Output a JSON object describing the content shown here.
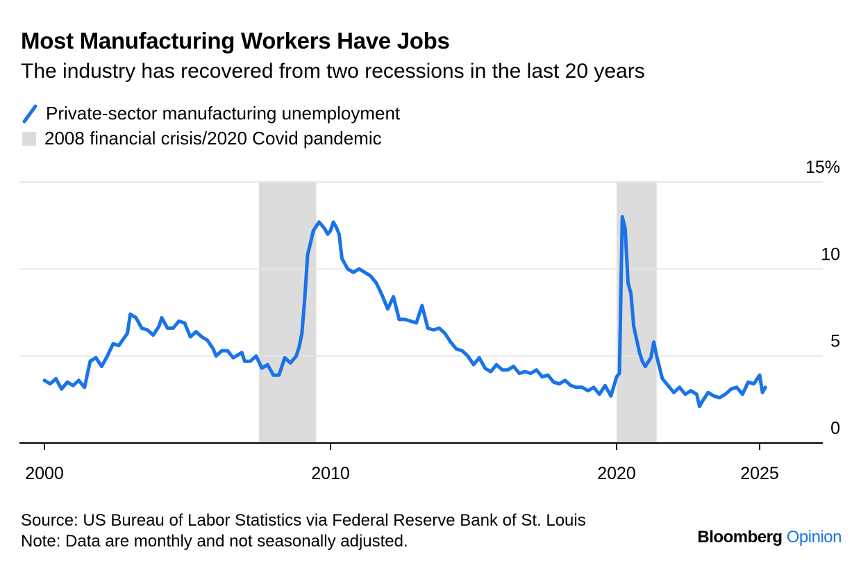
{
  "title": "Most Manufacturing Workers Have Jobs",
  "subtitle": "The industry has recovered from two recessions in the last 20 years",
  "legend": {
    "line_label": "Private-sector manufacturing unemployment",
    "band_label": "2008 financial crisis/2020 Covid pandemic"
  },
  "source": "Source: US Bureau of Labor Statistics via Federal Reserve Bank of St. Louis",
  "note": "Note: Data are monthly and not seasonally adjusted.",
  "brand": {
    "name": "Bloomberg",
    "suffix": "Opinion"
  },
  "colors": {
    "line": "#1a73e8",
    "band": "#dcdcdc",
    "grid": "#e6e6e6",
    "axis": "#000000",
    "brand_accent": "#1a73e8"
  },
  "chart_data": {
    "type": "line",
    "ylim": [
      0,
      15
    ],
    "xlim": [
      1999.6,
      2027.8
    ],
    "y_ticks": [
      {
        "value": 0,
        "label": "0"
      },
      {
        "value": 5,
        "label": "5"
      },
      {
        "value": 10,
        "label": "10"
      },
      {
        "value": 15,
        "label": "15%"
      }
    ],
    "x_ticks": [
      {
        "value": 2000,
        "label": "2000"
      },
      {
        "value": 2010,
        "label": "2010"
      },
      {
        "value": 2020,
        "label": "2020"
      },
      {
        "value": 2025,
        "label": "2025"
      }
    ],
    "grid": true,
    "bands": [
      {
        "start": 2007.5,
        "end": 2009.5
      },
      {
        "start": 2020.0,
        "end": 2021.4
      }
    ],
    "series": [
      {
        "points": [
          [
            2000.0,
            3.6
          ],
          [
            2000.2,
            3.4
          ],
          [
            2000.4,
            3.7
          ],
          [
            2000.6,
            3.1
          ],
          [
            2000.8,
            3.5
          ],
          [
            2001.0,
            3.3
          ],
          [
            2001.2,
            3.6
          ],
          [
            2001.4,
            3.2
          ],
          [
            2001.6,
            4.7
          ],
          [
            2001.8,
            4.9
          ],
          [
            2002.0,
            4.4
          ],
          [
            2002.2,
            5.0
          ],
          [
            2002.4,
            5.7
          ],
          [
            2002.6,
            5.6
          ],
          [
            2002.9,
            6.3
          ],
          [
            2003.0,
            7.4
          ],
          [
            2003.2,
            7.2
          ],
          [
            2003.4,
            6.6
          ],
          [
            2003.6,
            6.5
          ],
          [
            2003.8,
            6.2
          ],
          [
            2004.0,
            6.7
          ],
          [
            2004.1,
            7.2
          ],
          [
            2004.3,
            6.6
          ],
          [
            2004.5,
            6.6
          ],
          [
            2004.7,
            7.0
          ],
          [
            2004.9,
            6.9
          ],
          [
            2005.1,
            6.1
          ],
          [
            2005.3,
            6.4
          ],
          [
            2005.5,
            6.1
          ],
          [
            2005.7,
            5.9
          ],
          [
            2005.9,
            5.4
          ],
          [
            2006.0,
            5.0
          ],
          [
            2006.2,
            5.3
          ],
          [
            2006.4,
            5.3
          ],
          [
            2006.6,
            4.9
          ],
          [
            2006.9,
            5.2
          ],
          [
            2007.0,
            4.7
          ],
          [
            2007.2,
            4.7
          ],
          [
            2007.4,
            5.0
          ],
          [
            2007.6,
            4.3
          ],
          [
            2007.8,
            4.5
          ],
          [
            2008.0,
            3.9
          ],
          [
            2008.2,
            3.9
          ],
          [
            2008.4,
            4.9
          ],
          [
            2008.6,
            4.6
          ],
          [
            2008.8,
            5.0
          ],
          [
            2008.9,
            5.5
          ],
          [
            2009.0,
            6.3
          ],
          [
            2009.1,
            8.3
          ],
          [
            2009.2,
            10.8
          ],
          [
            2009.4,
            12.2
          ],
          [
            2009.6,
            12.7
          ],
          [
            2009.8,
            12.3
          ],
          [
            2009.9,
            12.0
          ],
          [
            2010.0,
            12.2
          ],
          [
            2010.1,
            12.7
          ],
          [
            2010.2,
            12.4
          ],
          [
            2010.3,
            12.0
          ],
          [
            2010.4,
            10.6
          ],
          [
            2010.6,
            10.0
          ],
          [
            2010.8,
            9.8
          ],
          [
            2011.0,
            10.0
          ],
          [
            2011.2,
            9.8
          ],
          [
            2011.4,
            9.6
          ],
          [
            2011.6,
            9.2
          ],
          [
            2011.8,
            8.5
          ],
          [
            2012.0,
            7.7
          ],
          [
            2012.2,
            8.4
          ],
          [
            2012.4,
            7.1
          ],
          [
            2012.6,
            7.1
          ],
          [
            2012.8,
            7.0
          ],
          [
            2013.0,
            6.9
          ],
          [
            2013.2,
            7.9
          ],
          [
            2013.4,
            6.6
          ],
          [
            2013.6,
            6.5
          ],
          [
            2013.8,
            6.6
          ],
          [
            2014.0,
            6.3
          ],
          [
            2014.2,
            5.8
          ],
          [
            2014.4,
            5.4
          ],
          [
            2014.6,
            5.3
          ],
          [
            2014.8,
            5.0
          ],
          [
            2015.0,
            4.5
          ],
          [
            2015.2,
            4.9
          ],
          [
            2015.4,
            4.3
          ],
          [
            2015.6,
            4.1
          ],
          [
            2015.8,
            4.5
          ],
          [
            2016.0,
            4.2
          ],
          [
            2016.2,
            4.2
          ],
          [
            2016.4,
            4.4
          ],
          [
            2016.6,
            4.0
          ],
          [
            2016.8,
            4.1
          ],
          [
            2017.0,
            4.0
          ],
          [
            2017.2,
            4.2
          ],
          [
            2017.4,
            3.8
          ],
          [
            2017.6,
            3.9
          ],
          [
            2017.8,
            3.5
          ],
          [
            2018.0,
            3.4
          ],
          [
            2018.2,
            3.6
          ],
          [
            2018.4,
            3.3
          ],
          [
            2018.6,
            3.2
          ],
          [
            2018.8,
            3.2
          ],
          [
            2019.0,
            3.0
          ],
          [
            2019.2,
            3.2
          ],
          [
            2019.4,
            2.8
          ],
          [
            2019.6,
            3.3
          ],
          [
            2019.8,
            2.7
          ],
          [
            2020.0,
            3.8
          ],
          [
            2020.1,
            4.0
          ],
          [
            2020.2,
            13.0
          ],
          [
            2020.3,
            12.3
          ],
          [
            2020.4,
            9.2
          ],
          [
            2020.5,
            8.6
          ],
          [
            2020.6,
            6.7
          ],
          [
            2020.8,
            5.2
          ],
          [
            2020.9,
            4.7
          ],
          [
            2021.0,
            4.4
          ],
          [
            2021.2,
            4.9
          ],
          [
            2021.3,
            5.8
          ],
          [
            2021.4,
            5.0
          ],
          [
            2021.6,
            3.7
          ],
          [
            2021.8,
            3.3
          ],
          [
            2022.0,
            2.9
          ],
          [
            2022.2,
            3.2
          ],
          [
            2022.4,
            2.8
          ],
          [
            2022.6,
            3.0
          ],
          [
            2022.8,
            2.8
          ],
          [
            2022.9,
            2.1
          ],
          [
            2023.0,
            2.4
          ],
          [
            2023.2,
            2.9
          ],
          [
            2023.4,
            2.7
          ],
          [
            2023.6,
            2.6
          ],
          [
            2023.8,
            2.8
          ],
          [
            2024.0,
            3.1
          ],
          [
            2024.2,
            3.2
          ],
          [
            2024.4,
            2.8
          ],
          [
            2024.6,
            3.5
          ],
          [
            2024.8,
            3.4
          ],
          [
            2025.0,
            3.9
          ],
          [
            2025.1,
            2.9
          ],
          [
            2025.2,
            3.2
          ]
        ]
      }
    ]
  }
}
